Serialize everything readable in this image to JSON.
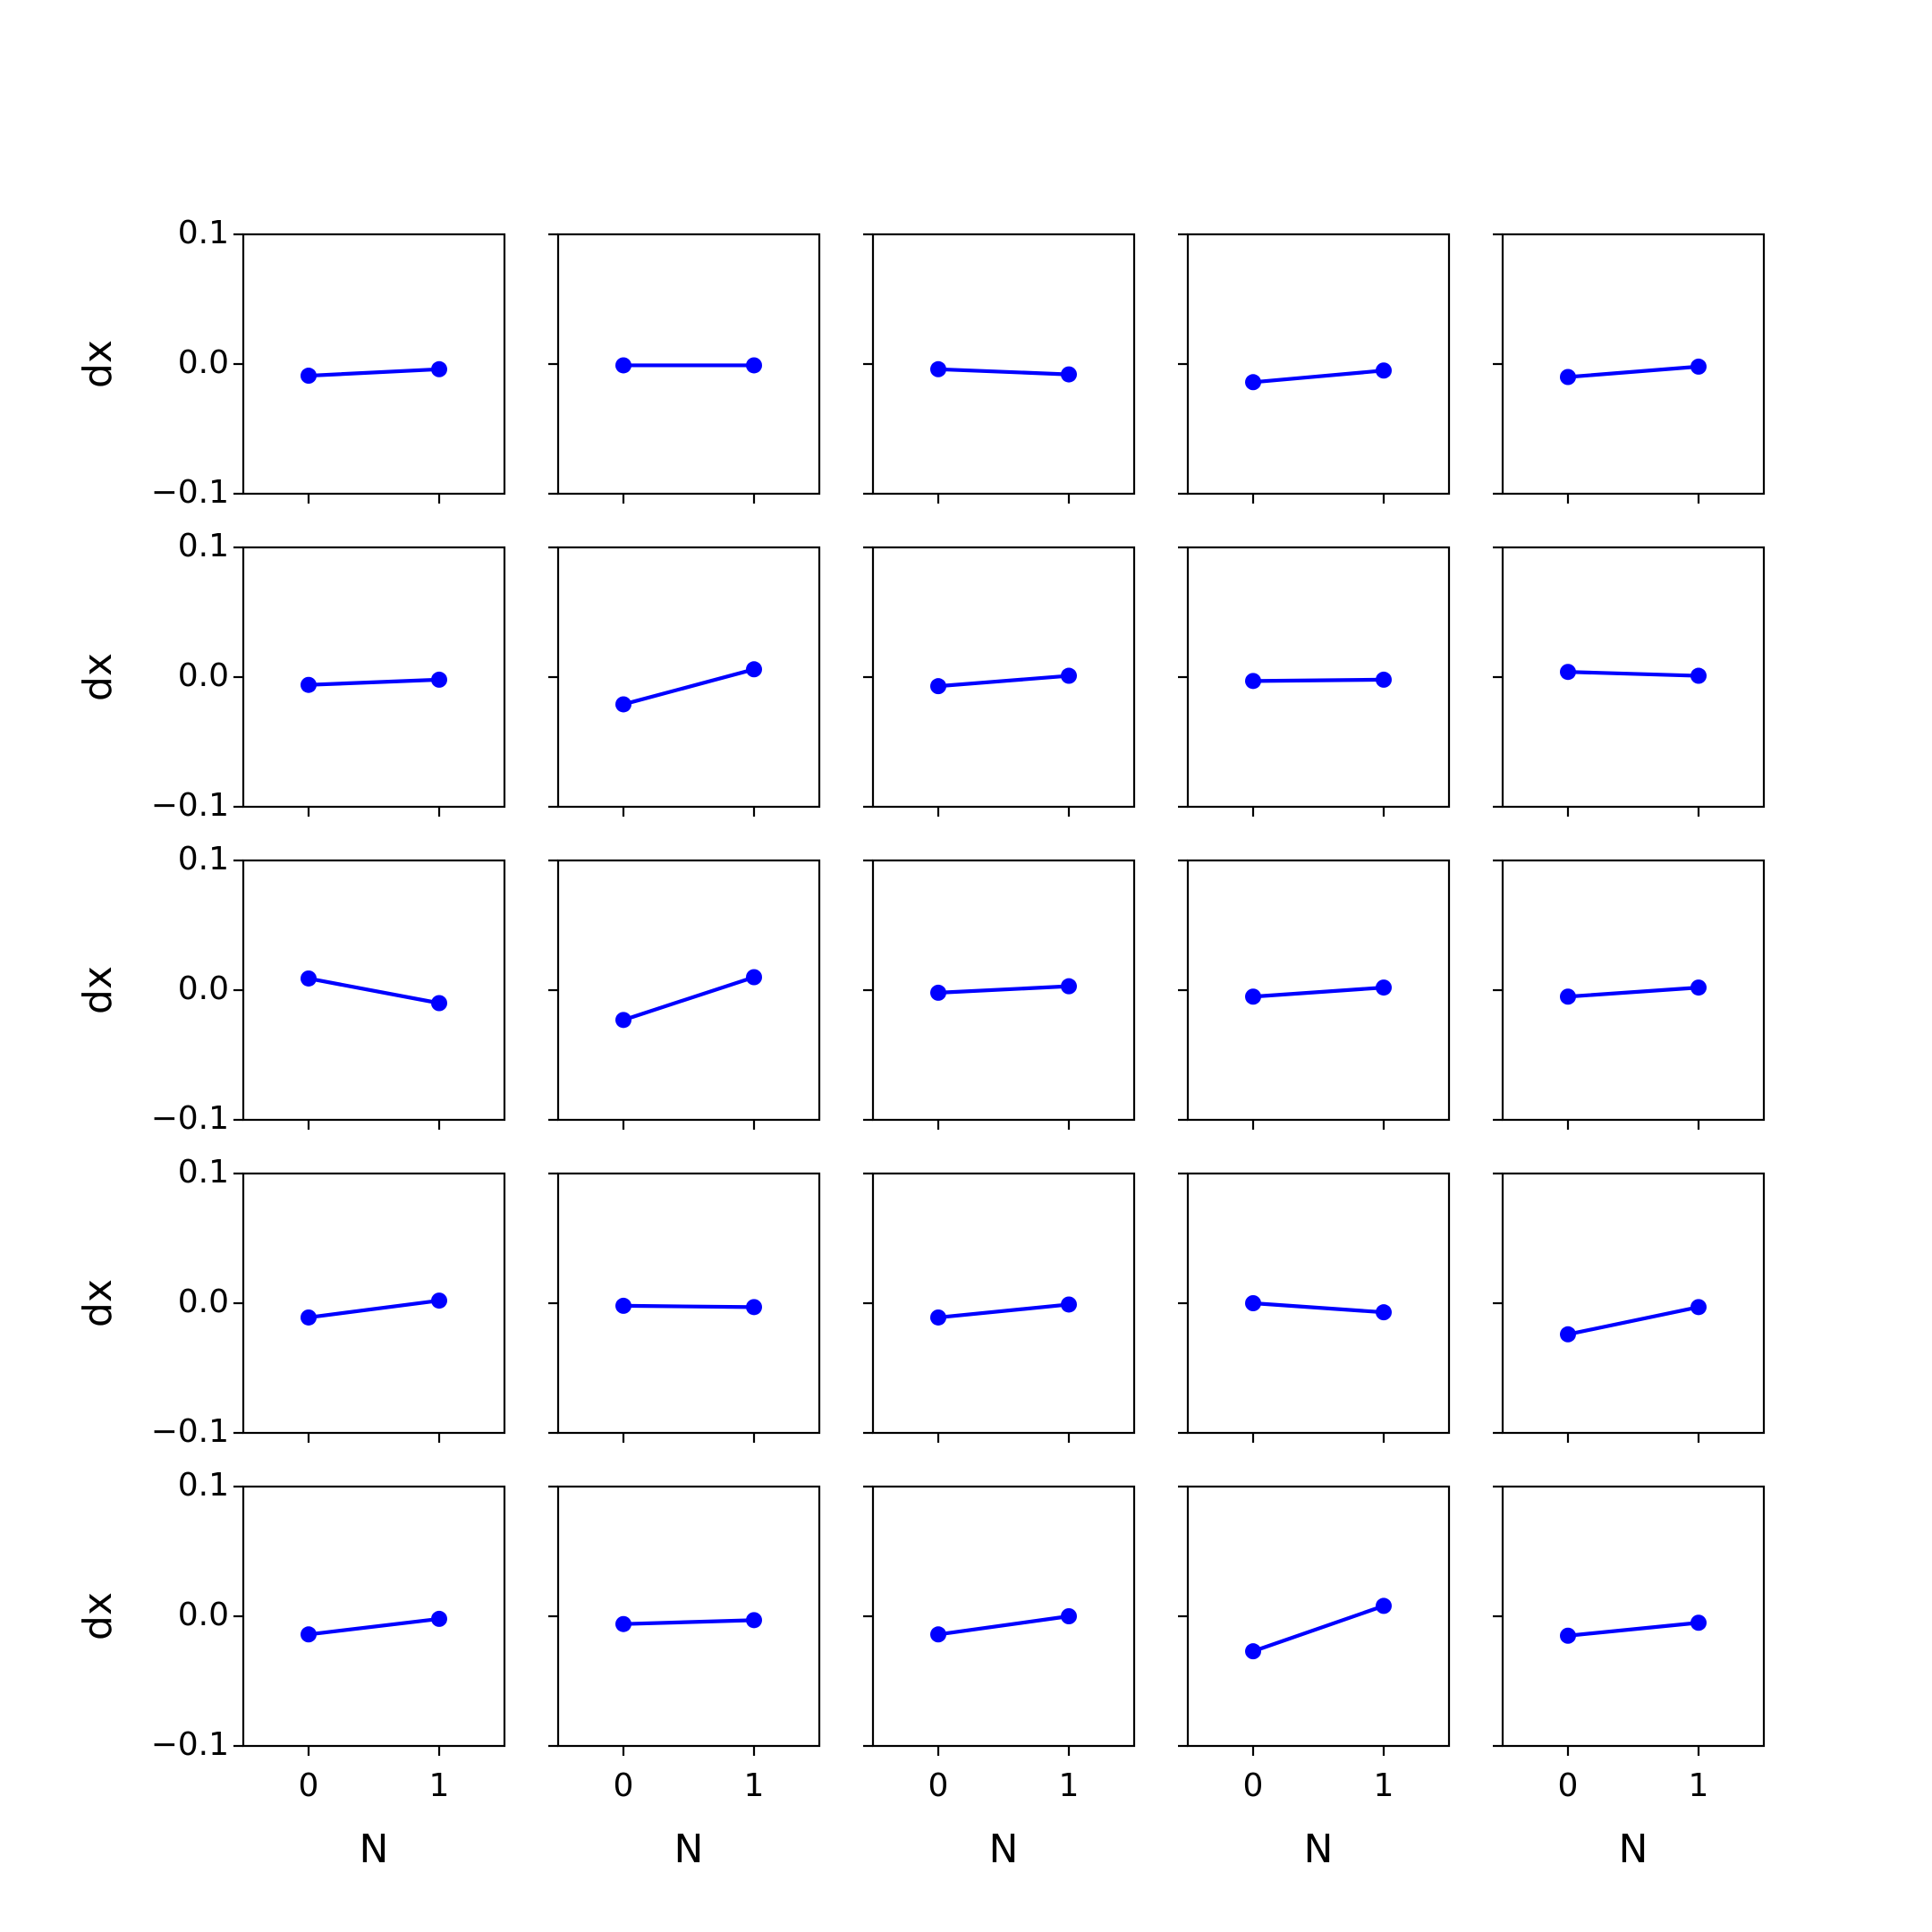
{
  "chart_data": {
    "type": "line",
    "layout": "5x5 small multiples",
    "shared_axes": true,
    "x": [
      0,
      1
    ],
    "xlabel": "N",
    "ylabel": "dx",
    "xlim": [
      -0.5,
      1.5
    ],
    "ylim": [
      -0.1,
      0.1
    ],
    "xticks": [
      0,
      1
    ],
    "xtick_labels": [
      "0",
      "1"
    ],
    "yticks": [
      -0.1,
      0.0,
      0.1
    ],
    "ytick_labels": [
      "−0.1",
      "0.0",
      "0.1"
    ],
    "grid": false,
    "legend": false,
    "color": "#0000ff",
    "panels": [
      {
        "row": 1,
        "col": 1,
        "values": [
          -0.009,
          -0.004
        ]
      },
      {
        "row": 1,
        "col": 2,
        "values": [
          -0.001,
          -0.001
        ]
      },
      {
        "row": 1,
        "col": 3,
        "values": [
          -0.004,
          -0.008
        ]
      },
      {
        "row": 1,
        "col": 4,
        "values": [
          -0.014,
          -0.005
        ]
      },
      {
        "row": 1,
        "col": 5,
        "values": [
          -0.01,
          -0.002
        ]
      },
      {
        "row": 2,
        "col": 1,
        "values": [
          -0.006,
          -0.002
        ]
      },
      {
        "row": 2,
        "col": 2,
        "values": [
          -0.021,
          0.006
        ]
      },
      {
        "row": 2,
        "col": 3,
        "values": [
          -0.007,
          0.001
        ]
      },
      {
        "row": 2,
        "col": 4,
        "values": [
          -0.003,
          -0.002
        ]
      },
      {
        "row": 2,
        "col": 5,
        "values": [
          0.004,
          0.001
        ]
      },
      {
        "row": 3,
        "col": 1,
        "values": [
          0.009,
          -0.01
        ]
      },
      {
        "row": 3,
        "col": 2,
        "values": [
          -0.023,
          0.01
        ]
      },
      {
        "row": 3,
        "col": 3,
        "values": [
          -0.002,
          0.003
        ]
      },
      {
        "row": 3,
        "col": 4,
        "values": [
          -0.005,
          0.002
        ]
      },
      {
        "row": 3,
        "col": 5,
        "values": [
          -0.005,
          0.002
        ]
      },
      {
        "row": 4,
        "col": 1,
        "values": [
          -0.011,
          0.002
        ]
      },
      {
        "row": 4,
        "col": 2,
        "values": [
          -0.002,
          -0.003
        ]
      },
      {
        "row": 4,
        "col": 3,
        "values": [
          -0.011,
          -0.001
        ]
      },
      {
        "row": 4,
        "col": 4,
        "values": [
          0.0,
          -0.007
        ]
      },
      {
        "row": 4,
        "col": 5,
        "values": [
          -0.024,
          -0.003
        ]
      },
      {
        "row": 5,
        "col": 1,
        "values": [
          -0.014,
          -0.002
        ]
      },
      {
        "row": 5,
        "col": 2,
        "values": [
          -0.006,
          -0.003
        ]
      },
      {
        "row": 5,
        "col": 3,
        "values": [
          -0.014,
          0.0
        ]
      },
      {
        "row": 5,
        "col": 4,
        "values": [
          -0.027,
          0.008
        ]
      },
      {
        "row": 5,
        "col": 5,
        "values": [
          -0.015,
          -0.005
        ]
      }
    ]
  }
}
